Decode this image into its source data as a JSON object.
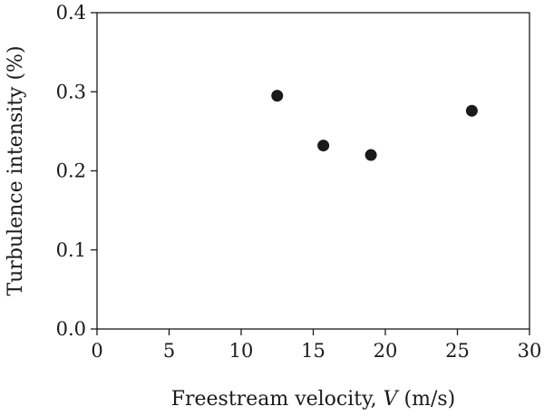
{
  "chart_data": {
    "type": "scatter",
    "title": "",
    "xlabel_parts": [
      "Freestream velocity, ",
      "V",
      " (m/s)"
    ],
    "ylabel": "Turbulence intensity (%)",
    "xlim": [
      0,
      30
    ],
    "ylim": [
      0.0,
      0.4
    ],
    "x_ticks": [
      "0",
      "5",
      "10",
      "15",
      "20",
      "25",
      "30"
    ],
    "y_ticks": [
      "0.0",
      "0.1",
      "0.2",
      "0.3",
      "0.4"
    ],
    "grid": false,
    "legend": "none",
    "series": [
      {
        "points": [
          {
            "x": 12.5,
            "y": 0.295
          },
          {
            "x": 15.7,
            "y": 0.232
          },
          {
            "x": 19.0,
            "y": 0.22
          },
          {
            "x": 26.0,
            "y": 0.276
          }
        ],
        "color": "#1a1a1a"
      }
    ]
  }
}
